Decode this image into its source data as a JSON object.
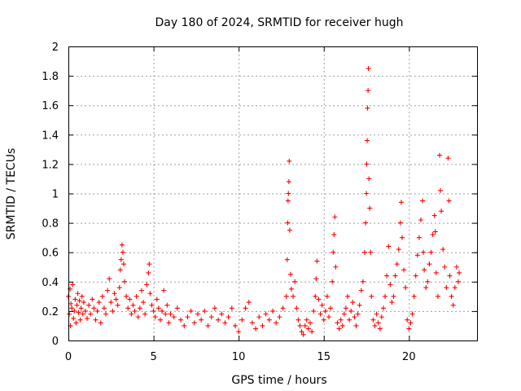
{
  "chart_data": {
    "type": "scatter",
    "title": "Day 180 of 2024, SRMTID for receiver hugh",
    "xlabel": "GPS time / hours",
    "ylabel": "SRMTID / TECUs",
    "xlim": [
      0,
      24
    ],
    "ylim": [
      0,
      2
    ],
    "x_ticks": [
      0,
      5,
      10,
      15,
      20
    ],
    "y_ticks": [
      0,
      0.2,
      0.4,
      0.6,
      0.8,
      1,
      1.2,
      1.4,
      1.6,
      1.8,
      2
    ],
    "x_tick_labels": [
      "0",
      "5",
      "10",
      "15",
      "20"
    ],
    "y_tick_labels": [
      "0",
      "0.2",
      "0.4",
      "0.6",
      "0.8",
      "1",
      "1.2",
      "1.4",
      "1.6",
      "1.8",
      "2"
    ],
    "grid": true,
    "marker": "plus",
    "color": "#ff0000",
    "series": [
      {
        "name": "SRMTID",
        "points": [
          [
            0.0,
            0.3
          ],
          [
            0.05,
            0.18
          ],
          [
            0.1,
            0.35
          ],
          [
            0.12,
            0.1
          ],
          [
            0.15,
            0.25
          ],
          [
            0.2,
            0.22
          ],
          [
            0.25,
            0.38
          ],
          [
            0.3,
            0.15
          ],
          [
            0.35,
            0.2
          ],
          [
            0.4,
            0.28
          ],
          [
            0.45,
            0.12
          ],
          [
            0.5,
            0.24
          ],
          [
            0.55,
            0.32
          ],
          [
            0.6,
            0.19
          ],
          [
            0.65,
            0.27
          ],
          [
            0.7,
            0.14
          ],
          [
            0.75,
            0.22
          ],
          [
            0.8,
            0.3
          ],
          [
            0.85,
            0.18
          ],
          [
            0.9,
            0.26
          ],
          [
            1.0,
            0.2
          ],
          [
            1.1,
            0.15
          ],
          [
            1.2,
            0.24
          ],
          [
            1.3,
            0.18
          ],
          [
            1.4,
            0.28
          ],
          [
            1.5,
            0.22
          ],
          [
            1.6,
            0.14
          ],
          [
            1.7,
            0.2
          ],
          [
            1.8,
            0.26
          ],
          [
            1.9,
            0.12
          ],
          [
            2.0,
            0.3
          ],
          [
            2.1,
            0.22
          ],
          [
            2.2,
            0.18
          ],
          [
            2.3,
            0.34
          ],
          [
            2.4,
            0.42
          ],
          [
            2.5,
            0.26
          ],
          [
            2.6,
            0.2
          ],
          [
            2.7,
            0.32
          ],
          [
            2.8,
            0.28
          ],
          [
            2.9,
            0.24
          ],
          [
            3.0,
            0.36
          ],
          [
            3.05,
            0.48
          ],
          [
            3.1,
            0.55
          ],
          [
            3.15,
            0.65
          ],
          [
            3.2,
            0.6
          ],
          [
            3.25,
            0.52
          ],
          [
            3.3,
            0.4
          ],
          [
            3.4,
            0.3
          ],
          [
            3.5,
            0.22
          ],
          [
            3.6,
            0.28
          ],
          [
            3.7,
            0.18
          ],
          [
            3.8,
            0.24
          ],
          [
            3.9,
            0.2
          ],
          [
            4.0,
            0.3
          ],
          [
            4.1,
            0.16
          ],
          [
            4.2,
            0.22
          ],
          [
            4.3,
            0.34
          ],
          [
            4.4,
            0.26
          ],
          [
            4.5,
            0.18
          ],
          [
            4.6,
            0.38
          ],
          [
            4.7,
            0.46
          ],
          [
            4.75,
            0.52
          ],
          [
            4.8,
            0.32
          ],
          [
            4.9,
            0.24
          ],
          [
            5.0,
            0.2
          ],
          [
            5.1,
            0.16
          ],
          [
            5.2,
            0.28
          ],
          [
            5.3,
            0.22
          ],
          [
            5.4,
            0.14
          ],
          [
            5.5,
            0.2
          ],
          [
            5.6,
            0.34
          ],
          [
            5.7,
            0.18
          ],
          [
            5.8,
            0.24
          ],
          [
            5.9,
            0.12
          ],
          [
            6.0,
            0.18
          ],
          [
            6.2,
            0.16
          ],
          [
            6.4,
            0.22
          ],
          [
            6.6,
            0.14
          ],
          [
            6.8,
            0.1
          ],
          [
            7.0,
            0.16
          ],
          [
            7.2,
            0.2
          ],
          [
            7.4,
            0.12
          ],
          [
            7.6,
            0.18
          ],
          [
            7.8,
            0.14
          ],
          [
            8.0,
            0.2
          ],
          [
            8.2,
            0.1
          ],
          [
            8.4,
            0.16
          ],
          [
            8.6,
            0.22
          ],
          [
            8.8,
            0.14
          ],
          [
            9.0,
            0.18
          ],
          [
            9.2,
            0.12
          ],
          [
            9.4,
            0.16
          ],
          [
            9.6,
            0.22
          ],
          [
            9.8,
            0.1
          ],
          [
            10.0,
            0.06
          ],
          [
            10.2,
            0.14
          ],
          [
            10.4,
            0.22
          ],
          [
            10.6,
            0.26
          ],
          [
            10.8,
            0.12
          ],
          [
            11.0,
            0.08
          ],
          [
            11.2,
            0.16
          ],
          [
            11.4,
            0.1
          ],
          [
            11.6,
            0.18
          ],
          [
            11.8,
            0.14
          ],
          [
            12.0,
            0.2
          ],
          [
            12.2,
            0.12
          ],
          [
            12.4,
            0.16
          ],
          [
            12.6,
            0.22
          ],
          [
            12.8,
            0.3
          ],
          [
            12.85,
            0.55
          ],
          [
            12.88,
            0.8
          ],
          [
            12.9,
            0.95
          ],
          [
            12.92,
            1.0
          ],
          [
            12.95,
            1.08
          ],
          [
            12.97,
            1.22
          ],
          [
            13.0,
            0.75
          ],
          [
            13.05,
            0.45
          ],
          [
            13.1,
            0.35
          ],
          [
            13.2,
            0.3
          ],
          [
            13.3,
            0.4
          ],
          [
            13.4,
            0.22
          ],
          [
            13.5,
            0.14
          ],
          [
            13.6,
            0.1
          ],
          [
            13.7,
            0.06
          ],
          [
            13.8,
            0.04
          ],
          [
            13.9,
            0.1
          ],
          [
            14.0,
            0.14
          ],
          [
            14.1,
            0.08
          ],
          [
            14.2,
            0.12
          ],
          [
            14.3,
            0.06
          ],
          [
            14.4,
            0.2
          ],
          [
            14.5,
            0.3
          ],
          [
            14.55,
            0.42
          ],
          [
            14.6,
            0.54
          ],
          [
            14.7,
            0.28
          ],
          [
            14.8,
            0.18
          ],
          [
            14.9,
            0.24
          ],
          [
            15.0,
            0.14
          ],
          [
            15.1,
            0.2
          ],
          [
            15.2,
            0.3
          ],
          [
            15.3,
            0.16
          ],
          [
            15.4,
            0.22
          ],
          [
            15.5,
            0.4
          ],
          [
            15.55,
            0.6
          ],
          [
            15.6,
            0.72
          ],
          [
            15.65,
            0.84
          ],
          [
            15.7,
            0.5
          ],
          [
            15.8,
            0.12
          ],
          [
            15.9,
            0.08
          ],
          [
            16.0,
            0.14
          ],
          [
            16.1,
            0.1
          ],
          [
            16.2,
            0.18
          ],
          [
            16.3,
            0.22
          ],
          [
            16.4,
            0.3
          ],
          [
            16.5,
            0.14
          ],
          [
            16.6,
            0.2
          ],
          [
            16.7,
            0.26
          ],
          [
            16.8,
            0.16
          ],
          [
            16.9,
            0.1
          ],
          [
            17.0,
            0.18
          ],
          [
            17.1,
            0.24
          ],
          [
            17.2,
            0.34
          ],
          [
            17.3,
            0.4
          ],
          [
            17.4,
            0.6
          ],
          [
            17.45,
            0.8
          ],
          [
            17.5,
            1.0
          ],
          [
            17.52,
            1.2
          ],
          [
            17.55,
            1.36
          ],
          [
            17.57,
            1.58
          ],
          [
            17.6,
            1.7
          ],
          [
            17.62,
            1.85
          ],
          [
            17.65,
            1.1
          ],
          [
            17.7,
            0.9
          ],
          [
            17.75,
            0.6
          ],
          [
            17.8,
            0.3
          ],
          [
            17.9,
            0.14
          ],
          [
            18.0,
            0.1
          ],
          [
            18.1,
            0.18
          ],
          [
            18.2,
            0.12
          ],
          [
            18.3,
            0.08
          ],
          [
            18.4,
            0.16
          ],
          [
            18.5,
            0.22
          ],
          [
            18.6,
            0.3
          ],
          [
            18.7,
            0.44
          ],
          [
            18.8,
            0.64
          ],
          [
            18.9,
            0.38
          ],
          [
            19.0,
            0.26
          ],
          [
            19.1,
            0.3
          ],
          [
            19.2,
            0.44
          ],
          [
            19.3,
            0.52
          ],
          [
            19.4,
            0.62
          ],
          [
            19.5,
            0.8
          ],
          [
            19.55,
            0.94
          ],
          [
            19.6,
            0.7
          ],
          [
            19.7,
            0.48
          ],
          [
            19.8,
            0.36
          ],
          [
            19.9,
            0.14
          ],
          [
            20.0,
            0.08
          ],
          [
            20.1,
            0.12
          ],
          [
            20.2,
            0.18
          ],
          [
            20.3,
            0.3
          ],
          [
            20.4,
            0.44
          ],
          [
            20.5,
            0.58
          ],
          [
            20.6,
            0.7
          ],
          [
            20.7,
            0.82
          ],
          [
            20.8,
            0.95
          ],
          [
            20.85,
            0.6
          ],
          [
            20.9,
            0.48
          ],
          [
            21.0,
            0.36
          ],
          [
            21.1,
            0.4
          ],
          [
            21.2,
            0.52
          ],
          [
            21.3,
            0.6
          ],
          [
            21.4,
            0.72
          ],
          [
            21.5,
            0.85
          ],
          [
            21.55,
            0.74
          ],
          [
            21.6,
            0.46
          ],
          [
            21.7,
            0.3
          ],
          [
            21.8,
            1.26
          ],
          [
            21.85,
            1.02
          ],
          [
            21.9,
            0.88
          ],
          [
            22.0,
            0.62
          ],
          [
            22.1,
            0.5
          ],
          [
            22.2,
            0.36
          ],
          [
            22.3,
            1.24
          ],
          [
            22.35,
            0.95
          ],
          [
            22.4,
            0.44
          ],
          [
            22.5,
            0.3
          ],
          [
            22.6,
            0.24
          ],
          [
            22.7,
            0.36
          ],
          [
            22.8,
            0.5
          ],
          [
            22.9,
            0.4
          ],
          [
            22.95,
            0.46
          ]
        ]
      }
    ]
  }
}
